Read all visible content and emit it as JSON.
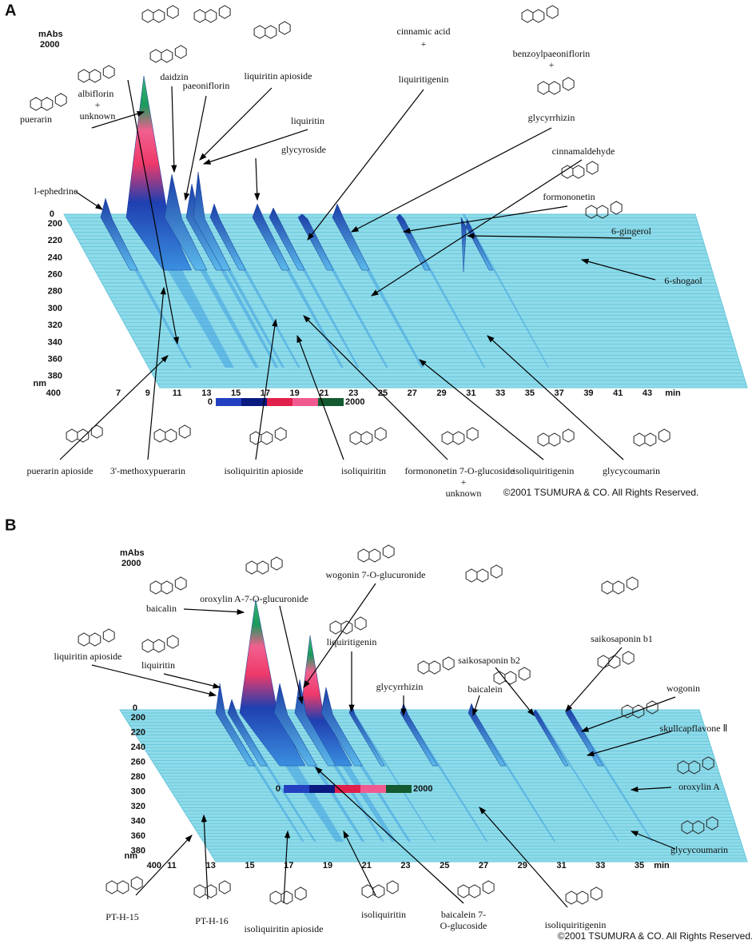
{
  "panels": [
    {
      "letter": "A",
      "unit": "mAbs",
      "scale": "2000",
      "wavelengths": [
        "0",
        "200",
        "220",
        "240",
        "260",
        "280",
        "300",
        "320",
        "340",
        "360",
        "380",
        "400"
      ],
      "nm": "nm",
      "times": [
        "7",
        "9",
        "11",
        "13",
        "15",
        "17",
        "19",
        "21",
        "23",
        "25",
        "27",
        "29",
        "31",
        "33",
        "35",
        "37",
        "39",
        "41",
        "43"
      ],
      "min": "min",
      "colorbar": [
        "0",
        "2000"
      ],
      "compounds": [
        "albiflorin",
        "+",
        "unknown",
        "daidzin",
        "paeoniflorin",
        "liquiritin apioside",
        "liquiritin",
        "glycyroside",
        "puerarin",
        "l-ephedrine",
        "cinnamic acid",
        "+",
        "liquiritigenin",
        "benzoylpaeoniflorin",
        "+",
        "glycyrrhizin",
        "cinnamaldehyde",
        "formononetin",
        "6-gingerol",
        "6-shogaol",
        "puerarin apioside",
        "3'-methoxypuerarin",
        "isoliquiritin apioside",
        "isoliquiritin",
        "formononetin 7-O-glucoside",
        "+",
        "unknown",
        "isoliquiritigenin",
        "glycycoumarin"
      ],
      "copyright": "©2001 TSUMURA & CO. All Rights Reserved."
    },
    {
      "letter": "B",
      "unit": "mAbs",
      "scale": "2000",
      "wavelengths": [
        "0",
        "200",
        "220",
        "240",
        "260",
        "280",
        "300",
        "320",
        "340",
        "360",
        "380",
        "400"
      ],
      "nm": "nm",
      "times": [
        "11",
        "13",
        "15",
        "17",
        "19",
        "21",
        "23",
        "25",
        "27",
        "29",
        "31",
        "33",
        "35"
      ],
      "min": "min",
      "colorbar": [
        "0",
        "2000"
      ],
      "compounds": [
        "oroxylin A-7-O-glucuronide",
        "wogonin 7-O-glucuronide",
        "baicalin",
        "liquiritigenin",
        "saikosaponin b2",
        "saikosaponin b1",
        "liquiritin apioside",
        "liquiritin",
        "glycyrrhizin",
        "baicalein",
        "wogonin",
        "skullcapflavone Ⅱ",
        "oroxylin A",
        "glycycoumarin",
        "PT-H-15",
        "PT-H-16",
        "isoliquiritin apioside",
        "isoliquiritin",
        "baicalein 7-",
        "O-glucoside",
        "isoliquiritigenin"
      ],
      "copyright": "©2001 TSUMURA & CO. All Rights Reserved."
    }
  ]
}
